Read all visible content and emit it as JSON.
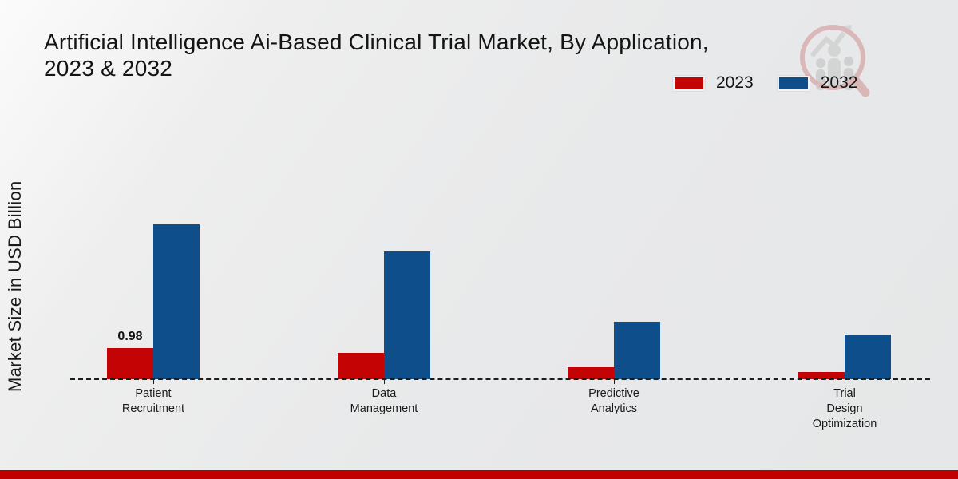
{
  "title": {
    "line1": "Artificial Intelligence Ai-Based Clinical Trial Market, By Application,",
    "line2": "2023 & 2032"
  },
  "y_axis_label": "Market Size in USD Billion",
  "legend": {
    "items": [
      {
        "label": "2023",
        "color": "#c40404"
      },
      {
        "label": "2032",
        "color": "#0d4e8b"
      }
    ]
  },
  "logo": {
    "name": "magnifier-growth-chart-watermark"
  },
  "footer": {
    "bar_color": "#c00000"
  },
  "chart_data": {
    "type": "bar",
    "title": "Artificial Intelligence Ai-Based Clinical Trial Market, By Application, 2023 & 2032",
    "xlabel": "",
    "ylabel": "Market Size in USD Billion",
    "unit": "USD Billion",
    "categories": [
      "Patient Recruitment",
      "Data Management",
      "Predictive Analytics",
      "Trial Design Optimization"
    ],
    "category_label_lines": [
      [
        "Patient",
        "Recruitment"
      ],
      [
        "Data",
        "Management"
      ],
      [
        "Predictive",
        "Analytics"
      ],
      [
        "Trial",
        "Design",
        "Optimization"
      ]
    ],
    "series": [
      {
        "name": "2023",
        "color": "#c40404",
        "values": [
          0.98,
          0.82,
          0.38,
          0.23
        ]
      },
      {
        "name": "2032",
        "color": "#0d4e8b",
        "values": [
          4.85,
          4.0,
          1.8,
          1.4
        ]
      }
    ],
    "value_labels": [
      [
        "0.98",
        "",
        "",
        ""
      ],
      [
        "",
        "",
        "",
        ""
      ]
    ],
    "ylim": [
      0,
      5
    ],
    "gridlines": false,
    "baseline_style": "dashed",
    "legend_position": "top-right"
  }
}
